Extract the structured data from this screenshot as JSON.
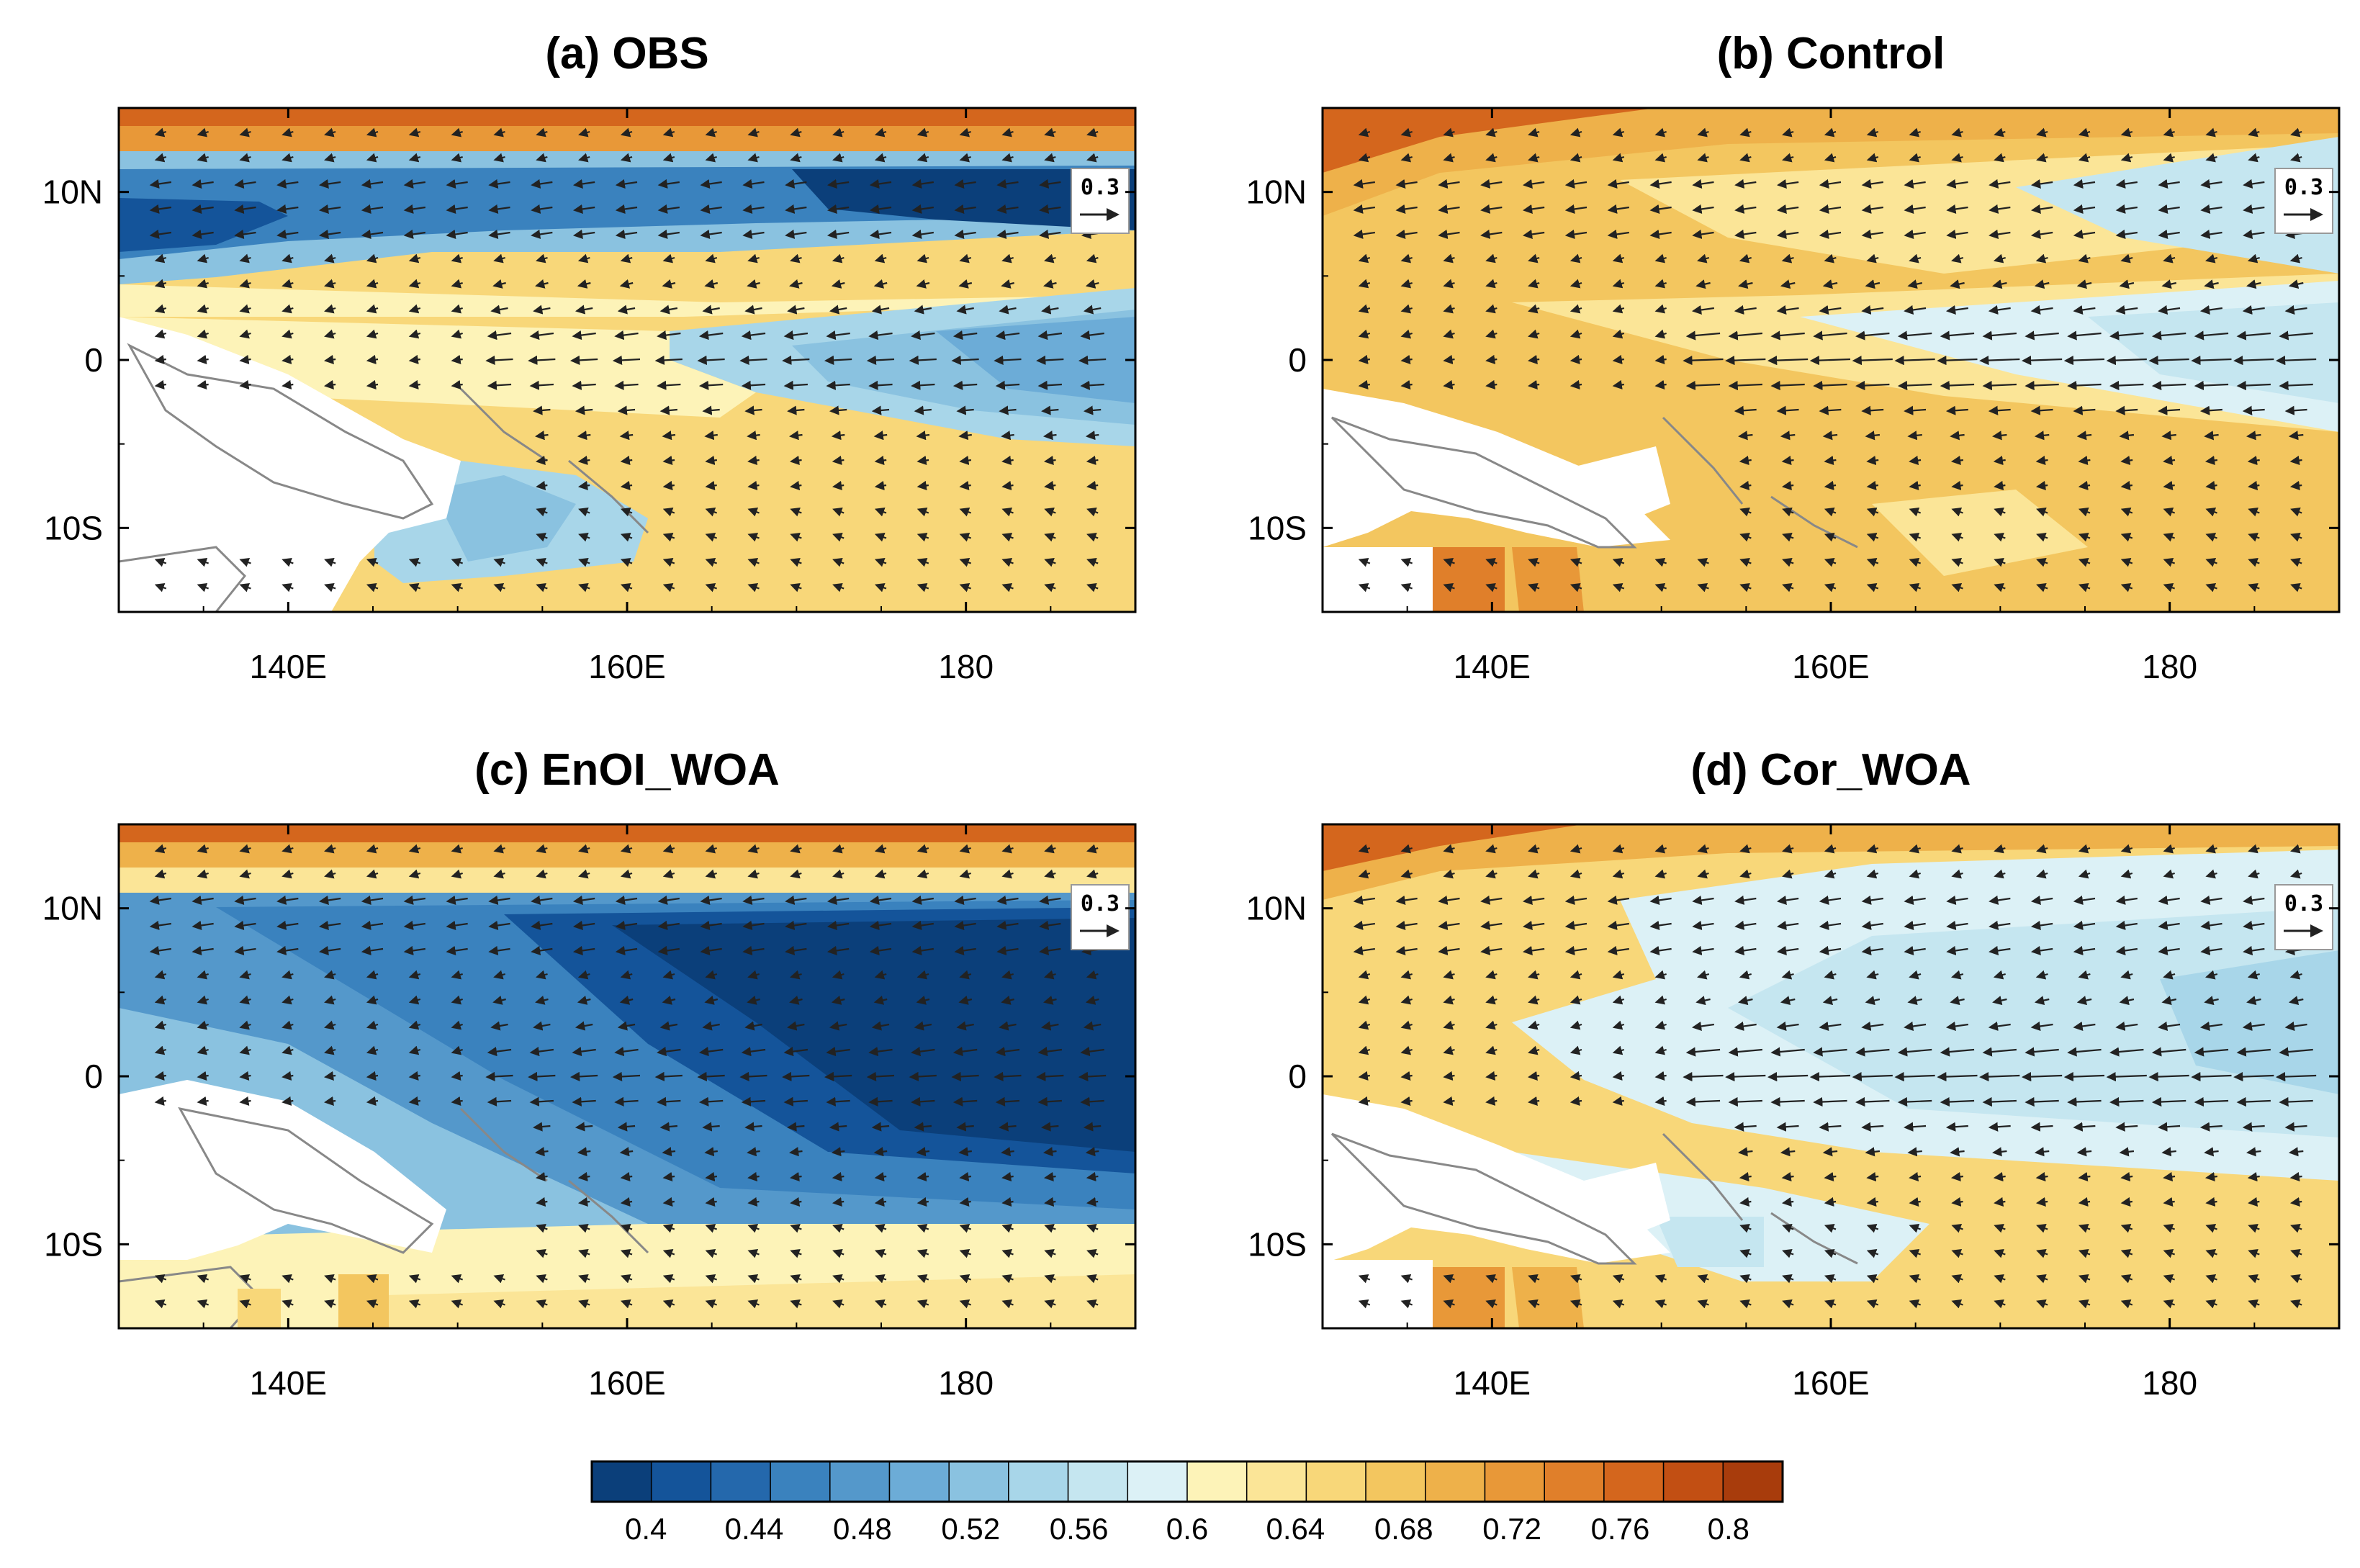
{
  "figure": {
    "panels": [
      {
        "id": "a",
        "title": "(a) OBS"
      },
      {
        "id": "b",
        "title": "(b) Control"
      },
      {
        "id": "c",
        "title": "(c) EnOI_WOA"
      },
      {
        "id": "d",
        "title": "(d) Cor_WOA"
      }
    ],
    "x_ticks": [
      "140E",
      "160E",
      "180"
    ],
    "y_ticks": [
      "10N",
      "0",
      "10S"
    ],
    "reference_vector_label": "0.3",
    "colorbar_labels": [
      "0.4",
      "0.44",
      "0.48",
      "0.52",
      "0.56",
      "0.6",
      "0.64",
      "0.68",
      "0.72",
      "0.76",
      "0.8"
    ],
    "colors": {
      "colorbar": [
        "#0b3f7a",
        "#14549a",
        "#2468ac",
        "#3a82be",
        "#5498cb",
        "#6cacd7",
        "#8ac2e0",
        "#a8d6e9",
        "#c5e6f0",
        "#dcf1f6",
        "#fdf3b8",
        "#fbe597",
        "#f8d779",
        "#f3c65f",
        "#eeb14a",
        "#e89838",
        "#e07f2a",
        "#d4661d",
        "#c24f13",
        "#a83c0c"
      ]
    }
  },
  "chart_data": {
    "type": "heatmap",
    "description_units": "contour-filled field with overlaid vector arrows",
    "x_range_deg": [
      130,
      190
    ],
    "y_range_deg": [
      -15,
      15
    ],
    "x_ticks": [
      140,
      160,
      180
    ],
    "x_tick_labels": [
      "140E",
      "160E",
      "180"
    ],
    "y_ticks": [
      10,
      0,
      -10
    ],
    "y_tick_labels": [
      "10N",
      "0",
      "10S"
    ],
    "colorbar": {
      "min": 0.38,
      "max": 0.82,
      "step": 0.02,
      "labels": [
        0.4,
        0.44,
        0.48,
        0.52,
        0.56,
        0.6,
        0.64,
        0.68,
        0.72,
        0.76,
        0.8
      ]
    },
    "reference_vector": 0.3,
    "panels": [
      {
        "title": "(a) OBS",
        "regime": "blue 8-11N band and eastern equatorial blue tongue, yellow south of equator, orange north edge",
        "approx_values": {
          "north_edge": 0.74,
          "band_10N": 0.42,
          "west_equator": 0.63,
          "east_equator": 0.55,
          "south_15S": 0.64
        }
      },
      {
        "title": "(b) Control",
        "regime": "mostly yellow-orange, light-blue tongue at equator east of 160E",
        "approx_values": {
          "north_edge": 0.76,
          "band_10N": 0.66,
          "west_equator": 0.67,
          "east_equator": 0.59,
          "south_15S": 0.69
        }
      },
      {
        "title": "(c) EnOI_WOA",
        "regime": "deep blue across most of domain, yellow south edge, orange north edge",
        "approx_values": {
          "north_edge": 0.72,
          "band_10N": 0.47,
          "west_equator": 0.54,
          "east_equator": 0.41,
          "south_15S": 0.63
        }
      },
      {
        "title": "(d) Cor_WOA",
        "regime": "yellow west/south, light-blue equatorial wedge east of 145E",
        "approx_values": {
          "north_edge": 0.74,
          "band_10N": 0.6,
          "west_equator": 0.64,
          "east_equator": 0.53,
          "south_15S": 0.67
        }
      }
    ]
  }
}
